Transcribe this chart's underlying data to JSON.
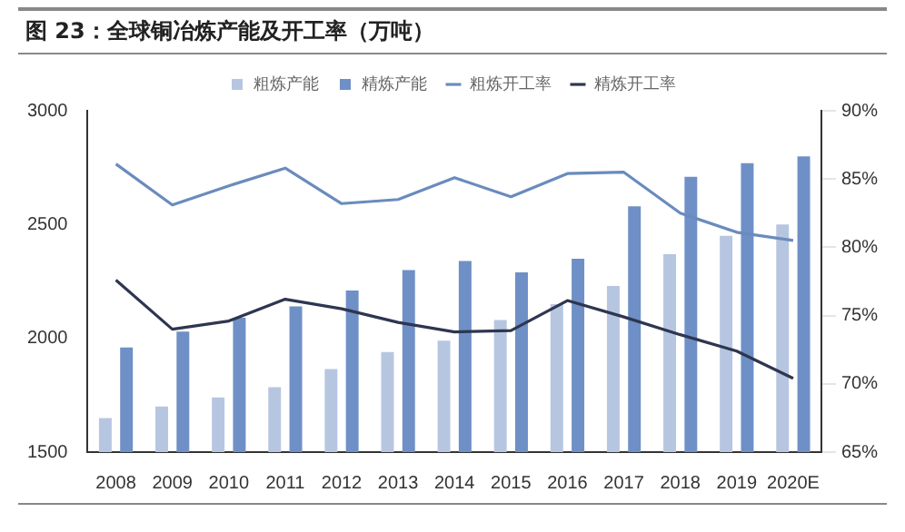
{
  "chart_data": {
    "type": "bar",
    "title": "图 23：全球铜冶炼产能及开工率（万吨）",
    "categories": [
      "2008",
      "2009",
      "2010",
      "2011",
      "2012",
      "2013",
      "2014",
      "2015",
      "2016",
      "2017",
      "2018",
      "2019",
      "2020E"
    ],
    "series": [
      {
        "name": "粗炼产能",
        "color": "#b7c6e0",
        "values": [
          1650,
          1700,
          1740,
          1785,
          1865,
          1940,
          1990,
          2080,
          2150,
          2230,
          2370,
          2450,
          2500
        ]
      },
      {
        "name": "精炼产能",
        "color": "#6f90c6",
        "values": [
          1960,
          2030,
          2090,
          2140,
          2210,
          2300,
          2340,
          2290,
          2350,
          2580,
          2710,
          2770,
          2800
        ]
      },
      {
        "name": "粗炼开工率",
        "type": "line",
        "axis": "y2",
        "color": "#6a8bbd",
        "values": [
          86.1,
          83.1,
          84.5,
          85.8,
          83.2,
          83.5,
          85.1,
          83.7,
          85.4,
          85.5,
          82.5,
          81.1,
          80.5
        ]
      },
      {
        "name": "精炼开工率",
        "type": "line",
        "axis": "y2",
        "color": "#2e3650",
        "values": [
          77.6,
          74.0,
          74.6,
          76.2,
          75.5,
          74.5,
          73.8,
          73.9,
          76.1,
          74.9,
          73.6,
          72.4,
          70.4
        ]
      }
    ],
    "ylim": [
      1500,
      3000
    ],
    "yticks": [
      1500,
      2000,
      2500,
      3000
    ],
    "y2lim": [
      65,
      90
    ],
    "y2ticks": [
      {
        "value": 65,
        "label": "65%"
      },
      {
        "value": 70,
        "label": "70%"
      },
      {
        "value": 75,
        "label": "75%"
      },
      {
        "value": 80,
        "label": "80%"
      },
      {
        "value": 85,
        "label": "85%"
      },
      {
        "value": 90,
        "label": "90%"
      }
    ],
    "legend": "top",
    "grid": false,
    "marker": "none"
  }
}
